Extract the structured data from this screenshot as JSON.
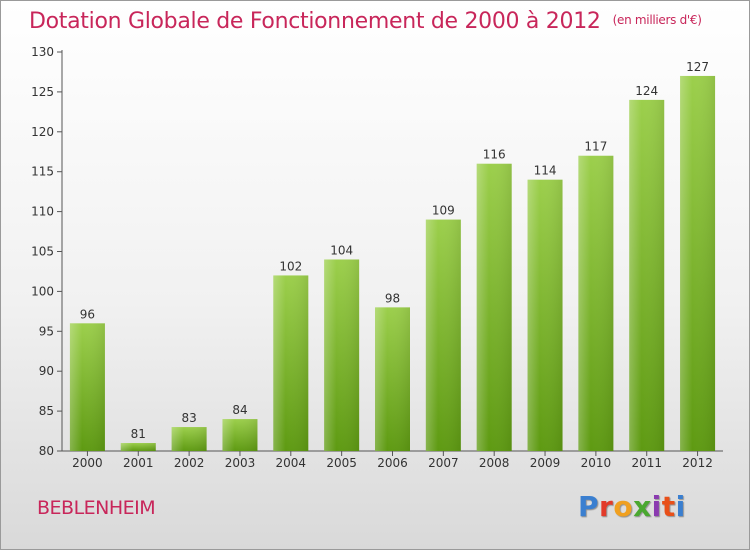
{
  "header": {
    "title": "Dotation Globale de Fonctionnement de 2000 à 2012",
    "subtitle": "(en milliers d'€)"
  },
  "footer": {
    "place_name": "BEBLENHEIM",
    "brand": "Proxiti",
    "brand_colors": [
      "#3a7fd0",
      "#e23a2a",
      "#f0a020",
      "#4aa830",
      "#8a3ab0",
      "#e8501a",
      "#3a7fd0"
    ]
  },
  "chart_data": {
    "type": "bar",
    "title": "Dotation Globale de Fonctionnement de 2000 à 2012",
    "subtitle": "(en milliers d'€)",
    "categories": [
      "2000",
      "2001",
      "2002",
      "2003",
      "2004",
      "2005",
      "2006",
      "2007",
      "2008",
      "2009",
      "2010",
      "2011",
      "2012"
    ],
    "values": [
      96,
      81,
      83,
      84,
      102,
      104,
      98,
      109,
      116,
      114,
      117,
      124,
      127
    ],
    "ylim": [
      80,
      130
    ],
    "yticks": [
      80,
      85,
      90,
      95,
      100,
      105,
      110,
      115,
      120,
      125,
      130
    ],
    "grid": false,
    "legend": "none",
    "colors": {
      "bar_top": "#9ccf4c",
      "bar_bottom": "#5e9a12",
      "axis": "#555555",
      "label": "#333333"
    }
  }
}
